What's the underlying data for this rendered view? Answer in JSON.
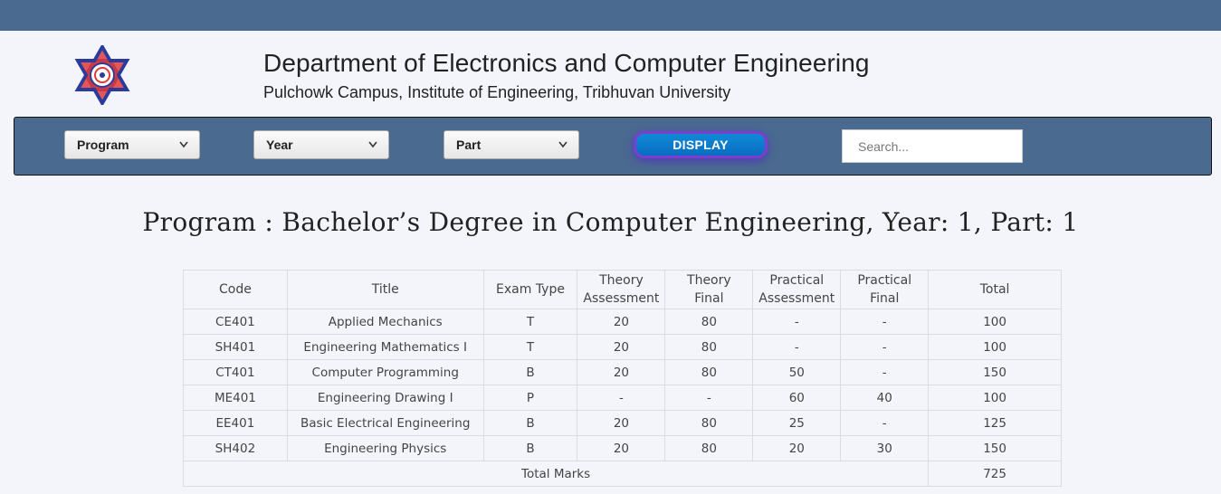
{
  "header": {
    "title": "Department of Electronics and Computer Engineering",
    "subtitle": "Pulchowk Campus, Institute of Engineering, Tribhuvan University",
    "logo_icon": "tu-emblem-icon",
    "bar_color": "#4a6a90"
  },
  "filters": {
    "program_label": "Program",
    "year_label": "Year",
    "part_label": "Part",
    "display_label": "DISPLAY",
    "search_placeholder": "Search..."
  },
  "heading": "Program : Bachelor’s Degree in Computer Engineering, Year: 1, Part: 1",
  "table": {
    "headers": [
      "Code",
      "Title",
      "Exam Type",
      "Theory\nAssessment",
      "Theory\nFinal",
      "Practical\nAssessment",
      "Practical\nFinal",
      "Total"
    ],
    "rows": [
      [
        "CE401",
        "Applied Mechanics",
        "T",
        "20",
        "80",
        "-",
        "-",
        "100"
      ],
      [
        "SH401",
        "Engineering Mathematics I",
        "T",
        "20",
        "80",
        "-",
        "-",
        "100"
      ],
      [
        "CT401",
        "Computer Programming",
        "B",
        "20",
        "80",
        "50",
        "-",
        "150"
      ],
      [
        "ME401",
        "Engineering Drawing I",
        "P",
        "-",
        "-",
        "60",
        "40",
        "100"
      ],
      [
        "EE401",
        "Basic Electrical Engineering",
        "B",
        "20",
        "80",
        "25",
        "-",
        "125"
      ],
      [
        "SH402",
        "Engineering Physics",
        "B",
        "20",
        "80",
        "20",
        "30",
        "150"
      ]
    ],
    "total_label": "Total Marks",
    "total_value": "725"
  }
}
